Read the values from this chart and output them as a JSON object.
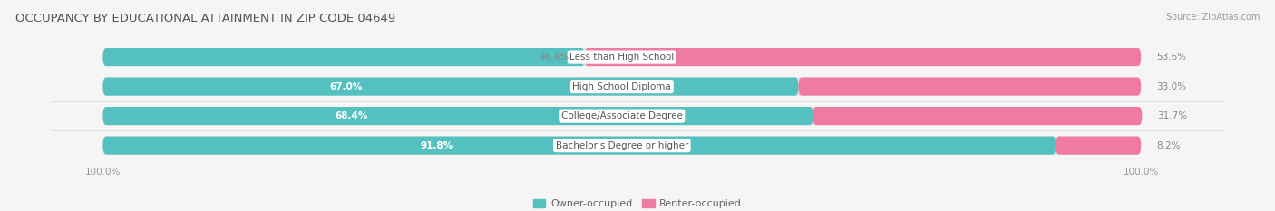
{
  "title": "OCCUPANCY BY EDUCATIONAL ATTAINMENT IN ZIP CODE 04649",
  "source": "Source: ZipAtlas.com",
  "categories": [
    "Less than High School",
    "High School Diploma",
    "College/Associate Degree",
    "Bachelor's Degree or higher"
  ],
  "owner_pct": [
    46.4,
    67.0,
    68.4,
    91.8
  ],
  "renter_pct": [
    53.6,
    33.0,
    31.7,
    8.2
  ],
  "owner_color": "#55C0C0",
  "renter_color": "#F07BA0",
  "bg_color": "#f5f5f5",
  "bar_bg_color": "#e2e2e2",
  "bar_shadow_color": "#d0d0d0",
  "title_color": "#555555",
  "source_color": "#999999",
  "label_color": "#555555",
  "pct_inside_color": "#ffffff",
  "pct_outside_color": "#666666",
  "title_fontsize": 9.5,
  "cat_fontsize": 7.5,
  "pct_fontsize": 7.5,
  "axis_fontsize": 7.5,
  "legend_fontsize": 8,
  "source_fontsize": 7,
  "bar_height": 0.62,
  "bar_gap": 0.38,
  "n_bars": 4
}
